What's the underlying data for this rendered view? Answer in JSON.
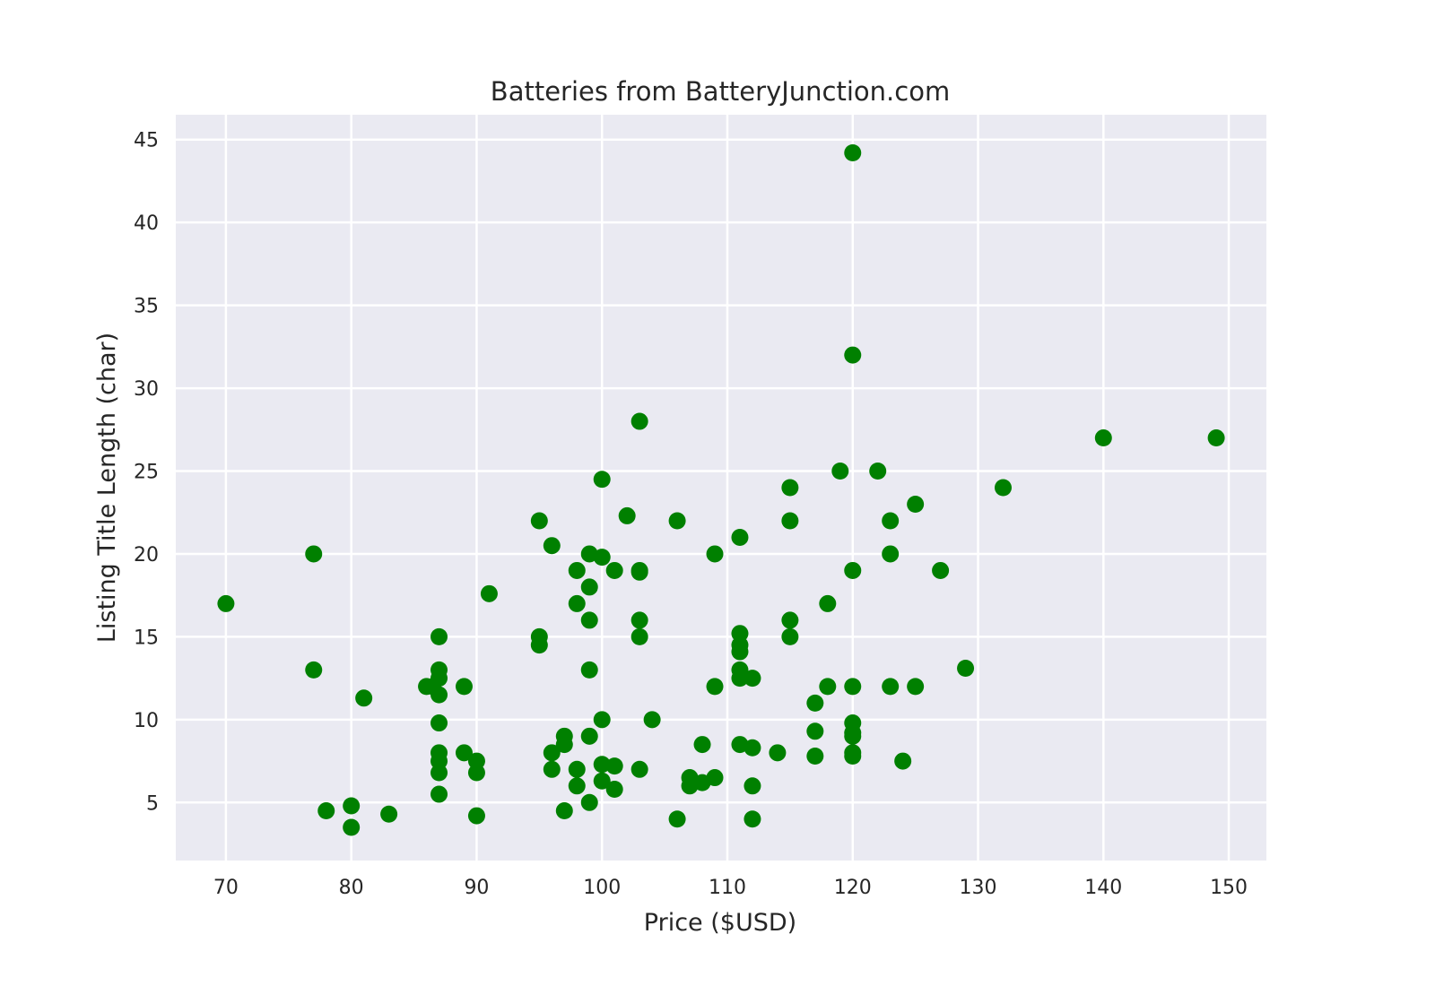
{
  "chart_data": {
    "type": "scatter",
    "title": "Batteries from BatteryJunction.com",
    "xlabel": "Price ($USD)",
    "ylabel": "Listing Title Length (char)",
    "xlim": [
      66,
      153
    ],
    "ylim": [
      1.5,
      46.5
    ],
    "xticks": [
      70,
      80,
      90,
      100,
      110,
      120,
      130,
      140,
      150
    ],
    "yticks": [
      5,
      10,
      15,
      20,
      25,
      30,
      35,
      40,
      45
    ],
    "grid": true,
    "legend": "none",
    "marker_color": "#008000",
    "background_color": "#eaeaf2",
    "points": [
      [
        70,
        17
      ],
      [
        77,
        20
      ],
      [
        77,
        13
      ],
      [
        78,
        4.5
      ],
      [
        80,
        4.8
      ],
      [
        80,
        3.5
      ],
      [
        81,
        11.3
      ],
      [
        83,
        4.3
      ],
      [
        86,
        12
      ],
      [
        86.5,
        12
      ],
      [
        87,
        15
      ],
      [
        87,
        13
      ],
      [
        87,
        12.5
      ],
      [
        87,
        11.5
      ],
      [
        87,
        9.8
      ],
      [
        87,
        8
      ],
      [
        87,
        7.5
      ],
      [
        87,
        6.8
      ],
      [
        87,
        5.5
      ],
      [
        89,
        12
      ],
      [
        89,
        8
      ],
      [
        90,
        7.5
      ],
      [
        90,
        6.8
      ],
      [
        90,
        4.2
      ],
      [
        91,
        17.6
      ],
      [
        95,
        22
      ],
      [
        95,
        15
      ],
      [
        95,
        14.5
      ],
      [
        96,
        20.5
      ],
      [
        96,
        8
      ],
      [
        96,
        7
      ],
      [
        97,
        9
      ],
      [
        97,
        8.5
      ],
      [
        97,
        4.5
      ],
      [
        98,
        19
      ],
      [
        98,
        17
      ],
      [
        98,
        7
      ],
      [
        98,
        6
      ],
      [
        99,
        20
      ],
      [
        99,
        18
      ],
      [
        99,
        16
      ],
      [
        99,
        13
      ],
      [
        99,
        9
      ],
      [
        99,
        5
      ],
      [
        100,
        24.5
      ],
      [
        100,
        19.8
      ],
      [
        100,
        10
      ],
      [
        100,
        7.3
      ],
      [
        100,
        6.3
      ],
      [
        101,
        19
      ],
      [
        101,
        7.2
      ],
      [
        101,
        5.8
      ],
      [
        102,
        22.3
      ],
      [
        103,
        28
      ],
      [
        103,
        19
      ],
      [
        103,
        18.9
      ],
      [
        103,
        16
      ],
      [
        103,
        15
      ],
      [
        103,
        7
      ],
      [
        104,
        10
      ],
      [
        106,
        22
      ],
      [
        106,
        4
      ],
      [
        107,
        6.5
      ],
      [
        107,
        6
      ],
      [
        108,
        8.5
      ],
      [
        108,
        6.2
      ],
      [
        109,
        20
      ],
      [
        109,
        12
      ],
      [
        109,
        6.5
      ],
      [
        111,
        21
      ],
      [
        111,
        15.2
      ],
      [
        111,
        14.5
      ],
      [
        111,
        14.1
      ],
      [
        111,
        13
      ],
      [
        111,
        12.5
      ],
      [
        111,
        8.5
      ],
      [
        112,
        12.5
      ],
      [
        112,
        8.3
      ],
      [
        112,
        6
      ],
      [
        112,
        4
      ],
      [
        114,
        8
      ],
      [
        115,
        24
      ],
      [
        115,
        22
      ],
      [
        115,
        16
      ],
      [
        115,
        15
      ],
      [
        117,
        11
      ],
      [
        117,
        9.3
      ],
      [
        117,
        7.8
      ],
      [
        118,
        17
      ],
      [
        118,
        12
      ],
      [
        119,
        25
      ],
      [
        120,
        44.2
      ],
      [
        120,
        32
      ],
      [
        120,
        19
      ],
      [
        120,
        12
      ],
      [
        120,
        9.8
      ],
      [
        120,
        9.2
      ],
      [
        120,
        9
      ],
      [
        120,
        8
      ],
      [
        120,
        7.8
      ],
      [
        122,
        25
      ],
      [
        123,
        22
      ],
      [
        123,
        20
      ],
      [
        123,
        12
      ],
      [
        124,
        7.5
      ],
      [
        125,
        23
      ],
      [
        125,
        12
      ],
      [
        127,
        19
      ],
      [
        129,
        13.1
      ],
      [
        132,
        24
      ],
      [
        140,
        27
      ],
      [
        149,
        27
      ]
    ]
  }
}
